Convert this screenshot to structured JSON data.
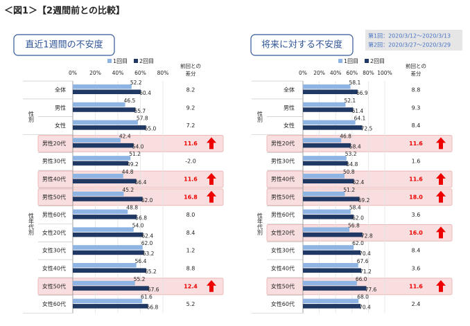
{
  "title": "＜図1＞【2週間前との比較】",
  "note": [
    "第1回：2020/3/12～2020/3/13",
    "第2回：2020/3/27～2020/3/29"
  ],
  "chart_data": [
    {
      "type": "bar",
      "orientation": "horizontal",
      "title": "直近1週間の不安度",
      "categories": [
        "全体",
        "男性",
        "女性",
        "男性20代",
        "男性30代",
        "男性40代",
        "男性50代",
        "男性60代",
        "女性20代",
        "女性30代",
        "女性40代",
        "女性50代",
        "女性60代"
      ],
      "group_labels": [
        "性別",
        "性年代別"
      ],
      "series": [
        {
          "name": "1回目",
          "color": "#8db4e2",
          "values": [
            52.2,
            46.5,
            57.8,
            42.4,
            51.2,
            44.8,
            45.2,
            48.8,
            54.0,
            62.0,
            56.4,
            55.2,
            61.6
          ],
          "value_labels": [
            "52.2",
            "46.5",
            "57.8",
            "42.4",
            "51.2",
            "44.8",
            "45.2",
            "48.8",
            "54.0",
            "62.0",
            "56.4",
            "55.2",
            "61.6"
          ]
        },
        {
          "name": "2回目",
          "color": "#1f3864",
          "values": [
            60.4,
            55.7,
            65.0,
            54.0,
            49.2,
            56.4,
            62.0,
            56.8,
            62.4,
            63.2,
            65.2,
            67.6,
            66.8
          ],
          "value_labels": [
            "60.4",
            "55.7",
            "65.0",
            "54.0",
            "49.2",
            "56.4",
            "62.0",
            "56.8",
            "62.4",
            "63.2",
            "65.2",
            "67.6",
            "66.8"
          ]
        }
      ],
      "difference": {
        "header": [
          "前回との",
          "差分"
        ],
        "values": [
          8.2,
          9.2,
          7.2,
          11.6,
          -2.0,
          11.6,
          16.8,
          8.0,
          8.4,
          1.2,
          8.8,
          12.4,
          5.2
        ],
        "value_labels": [
          "8.2",
          "9.2",
          "7.2",
          "11.6",
          "-2.0",
          "11.6",
          "16.8",
          "8.0",
          "8.4",
          "1.2",
          "8.8",
          "12.4",
          "5.2"
        ]
      },
      "highlight_rows": [
        3,
        5,
        6,
        11
      ],
      "xlim": [
        0,
        80
      ],
      "xticks": [
        {
          "value": 0,
          "label": "0%"
        },
        {
          "value": 20,
          "label": "20%"
        },
        {
          "value": 40,
          "label": "40%"
        },
        {
          "value": 60,
          "label": "60%"
        },
        {
          "value": 80,
          "label": "80%"
        }
      ],
      "grid": true
    },
    {
      "type": "bar",
      "orientation": "horizontal",
      "title": "将来に対する不安度",
      "categories": [
        "全体",
        "男性",
        "女性",
        "男性20代",
        "男性30代",
        "男性40代",
        "男性50代",
        "男性60代",
        "女性20代",
        "女性30代",
        "女性40代",
        "女性50代",
        "女性60代"
      ],
      "group_labels": [
        "性別",
        "性年代別"
      ],
      "series": [
        {
          "name": "1回目",
          "color": "#8db4e2",
          "values": [
            58.1,
            52.1,
            64.1,
            46.8,
            53.2,
            50.8,
            51.2,
            58.4,
            56.8,
            62.0,
            67.6,
            66.0,
            68.0
          ],
          "value_labels": [
            "58.1",
            "52.1",
            "64.1",
            "46.8",
            "53.2",
            "50.8",
            "51.2",
            "58.4",
            "56.8",
            "62.0",
            "67.6",
            "66.0",
            "68.0"
          ]
        },
        {
          "name": "2回目",
          "color": "#1f3864",
          "values": [
            66.9,
            61.4,
            72.5,
            58.4,
            54.8,
            62.4,
            69.2,
            62.0,
            72.8,
            70.4,
            71.2,
            77.6,
            70.4
          ],
          "value_labels": [
            "66.9",
            "61.4",
            "72.5",
            "58.4",
            "54.8",
            "62.4",
            "69.2",
            "62.0",
            "72.8",
            "70.4",
            "71.2",
            "77.6",
            "70.4"
          ]
        }
      ],
      "difference": {
        "header": [
          "前回との",
          "差分"
        ],
        "values": [
          8.8,
          9.3,
          8.4,
          11.6,
          1.6,
          11.6,
          18.0,
          3.6,
          16.0,
          8.4,
          3.6,
          11.6,
          2.4
        ],
        "value_labels": [
          "8.8",
          "9.3",
          "8.4",
          "11.6",
          "1.6",
          "11.6",
          "18.0",
          "3.6",
          "16.0",
          "8.4",
          "3.6",
          "11.6",
          "2.4"
        ]
      },
      "highlight_rows": [
        3,
        5,
        6,
        8,
        11
      ],
      "xlim": [
        0,
        100
      ],
      "xticks": [
        {
          "value": 0,
          "label": "0%"
        },
        {
          "value": 20,
          "label": "20%"
        },
        {
          "value": 40,
          "label": "40%"
        },
        {
          "value": 60,
          "label": "60%"
        },
        {
          "value": 80,
          "label": "80%"
        },
        {
          "value": 100,
          "label": "100%"
        }
      ],
      "grid": true
    }
  ]
}
